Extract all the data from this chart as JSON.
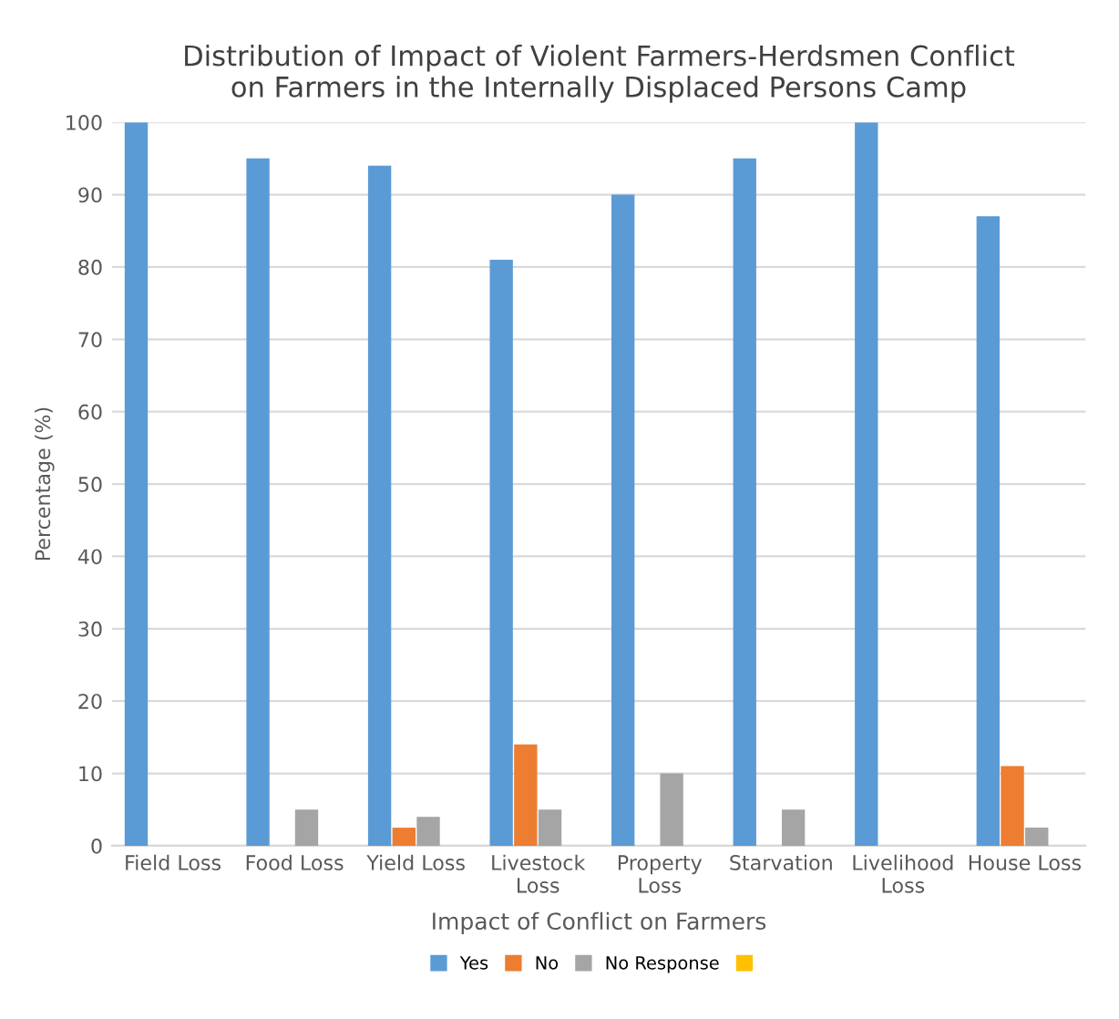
{
  "chart_data": {
    "type": "bar",
    "title": "Distribution of Impact of Violent Farmers-Herdsmen Conflict\non Farmers in the Internally Displaced Persons Camp",
    "xlabel": "Impact of Conflict on Farmers",
    "ylabel": "Percentage (%)",
    "categories": [
      "Field Loss",
      "Food Loss",
      "Yield Loss",
      "Livestock\nLoss",
      "Property\nLoss",
      "Starvation",
      "Livelihood\nLoss",
      "House Loss"
    ],
    "series": [
      {
        "name": "Yes",
        "color": "#5b9bd5",
        "values": [
          100,
          95,
          94,
          81,
          90,
          95,
          100,
          87
        ]
      },
      {
        "name": "No",
        "color": "#ed7d31",
        "values": [
          0,
          0,
          2.5,
          14,
          0,
          0,
          0,
          11
        ]
      },
      {
        "name": "No Response",
        "color": "#a5a5a5",
        "values": [
          0,
          5,
          4,
          5,
          10,
          5,
          0,
          2.5
        ]
      },
      {
        "color": "#ffc000",
        "values": [
          0,
          0,
          0,
          0,
          0,
          0,
          0,
          0
        ]
      }
    ],
    "ylim": [
      0,
      100
    ],
    "yticks": [
      0,
      10,
      20,
      30,
      40,
      50,
      60,
      70,
      80,
      90,
      100
    ],
    "grid": "y",
    "legend": "bottom"
  }
}
